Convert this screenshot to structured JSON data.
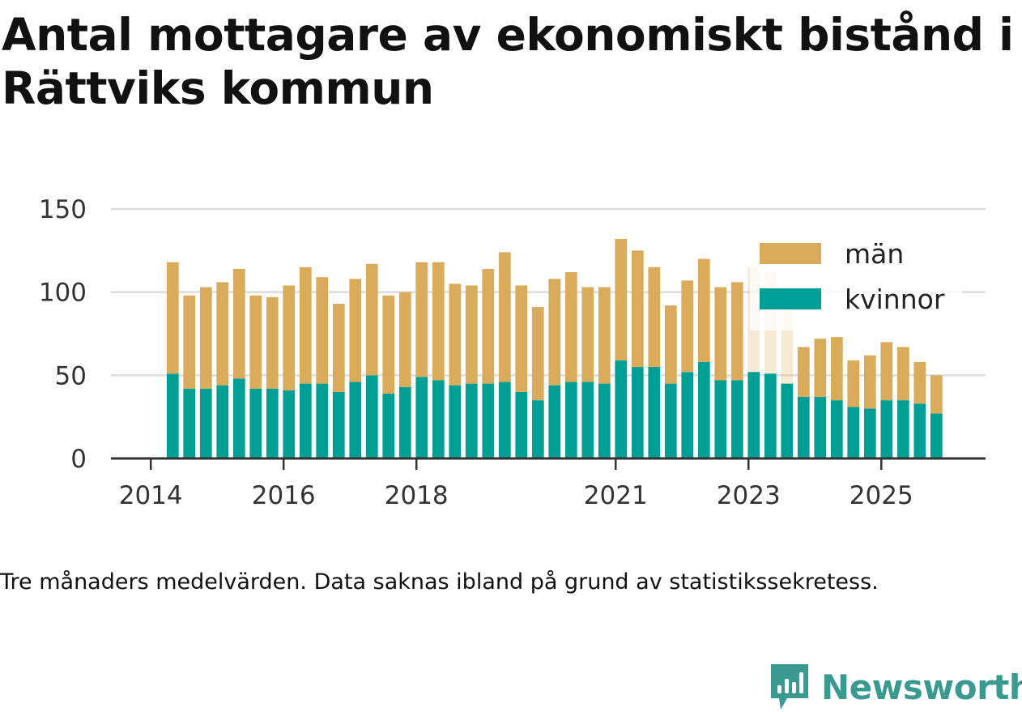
{
  "title": "Antal mottagare av ekonomiskt bistånd i Rättviks kommun",
  "note": "Tre månaders medelvärden. Data saknas ibland på grund av statistikssekretess.",
  "brand": "Newsworthy",
  "colors": {
    "man": "#d9ab5b",
    "kvinnor": "#009f95",
    "grid": "#dddddd",
    "axis": "#333333",
    "brand": "#3a9a8f"
  },
  "chart_data": {
    "type": "bar",
    "stacked": true,
    "ylim": [
      0,
      150
    ],
    "yticks": [
      0,
      50,
      100,
      150
    ],
    "xticks": [
      {
        "label": "2014",
        "x": 2014.0
      },
      {
        "label": "2016",
        "x": 2016.0
      },
      {
        "label": "2018",
        "x": 2018.0
      },
      {
        "label": "2021",
        "x": 2021.0
      },
      {
        "label": "2023",
        "x": 2023.0
      },
      {
        "label": "2025",
        "x": 2025.0
      }
    ],
    "xrange": [
      2013.4,
      2026.57
    ],
    "legend": [
      {
        "key": "man",
        "label": "män"
      },
      {
        "key": "kvinnor",
        "label": "kvinnor"
      }
    ],
    "legend_position": "top-right",
    "bar_width": 0.18,
    "x": [
      2014.33,
      2014.58,
      2014.83,
      2015.08,
      2015.33,
      2015.58,
      2015.83,
      2016.08,
      2016.33,
      2016.58,
      2016.83,
      2017.08,
      2017.33,
      2017.58,
      2017.83,
      2018.08,
      2018.33,
      2018.58,
      2018.83,
      2019.08,
      2019.33,
      2019.58,
      2019.83,
      2020.08,
      2020.33,
      2020.58,
      2020.83,
      2021.08,
      2021.33,
      2021.58,
      2021.83,
      2022.08,
      2022.33,
      2022.58,
      2022.83,
      2023.08,
      2023.33,
      2023.58,
      2023.83,
      2024.08,
      2024.33,
      2024.58,
      2024.83,
      2025.08,
      2025.33,
      2025.58,
      2025.83
    ],
    "series": [
      {
        "name": "kvinnor",
        "key": "kvinnor",
        "values": [
          51,
          42,
          42,
          44,
          48,
          42,
          42,
          41,
          45,
          45,
          40,
          46,
          50,
          39,
          43,
          49,
          47,
          44,
          45,
          45,
          46,
          40,
          35,
          44,
          46,
          46,
          45,
          59,
          55,
          55,
          45,
          52,
          58,
          47,
          47,
          52,
          51,
          45,
          37,
          37,
          35,
          31,
          30,
          35,
          35,
          33,
          27
        ]
      },
      {
        "name": "män",
        "key": "man",
        "values": [
          67,
          56,
          61,
          62,
          66,
          56,
          55,
          63,
          70,
          64,
          53,
          62,
          67,
          59,
          57,
          69,
          71,
          61,
          59,
          69,
          78,
          64,
          56,
          64,
          66,
          57,
          58,
          73,
          70,
          60,
          47,
          55,
          62,
          56,
          59,
          63,
          61,
          55,
          30,
          35,
          38,
          28,
          32,
          35,
          32,
          25,
          23
        ]
      }
    ],
    "faded_index": [
      35,
      36,
      37
    ]
  }
}
